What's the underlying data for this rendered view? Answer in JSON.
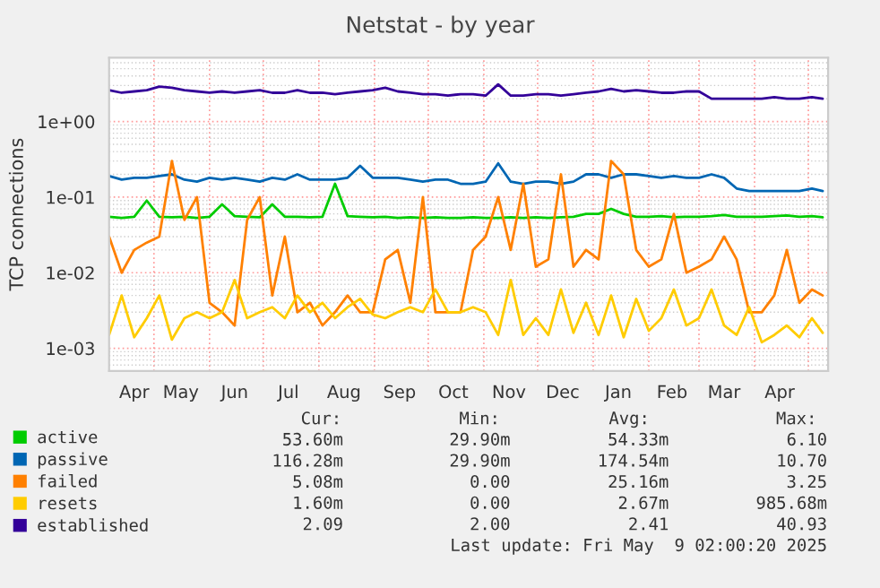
{
  "chart_data": {
    "type": "line",
    "title": "Netstat - by year",
    "ylabel": "TCP connections",
    "log": "y",
    "grid": true,
    "legend": "bottom",
    "x": [
      "2024-04-06",
      "2024-04-13",
      "2024-04-20",
      "2024-04-27",
      "2024-05-04",
      "2024-05-11",
      "2024-05-18",
      "2024-05-25",
      "2024-06-01",
      "2024-06-08",
      "2024-06-15",
      "2024-06-22",
      "2024-06-29",
      "2024-07-06",
      "2024-07-13",
      "2024-07-20",
      "2024-07-27",
      "2024-08-03",
      "2024-08-10",
      "2024-08-17",
      "2024-08-24",
      "2024-08-31",
      "2024-09-07",
      "2024-09-14",
      "2024-09-21",
      "2024-09-28",
      "2024-10-05",
      "2024-10-12",
      "2024-10-19",
      "2024-10-26",
      "2024-11-02",
      "2024-11-09",
      "2024-11-16",
      "2024-11-23",
      "2024-11-30",
      "2024-12-07",
      "2024-12-14",
      "2024-12-21",
      "2024-12-28",
      "2025-01-04",
      "2025-01-11",
      "2025-01-18",
      "2025-01-25",
      "2025-02-01",
      "2025-02-08",
      "2025-02-15",
      "2025-02-22",
      "2025-03-01",
      "2025-03-08",
      "2025-03-15",
      "2025-03-22",
      "2025-03-29",
      "2025-04-05",
      "2025-04-12",
      "2025-04-19",
      "2025-04-26",
      "2025-05-03",
      "2025-05-09"
    ],
    "xlim": [
      "2024-04-06",
      "2025-05-12"
    ],
    "xticks": [
      {
        "value": "2024-04-20",
        "label": "Apr"
      },
      {
        "value": "2024-05-16",
        "label": "May"
      },
      {
        "value": "2024-06-15",
        "label": "Jun"
      },
      {
        "value": "2024-07-15",
        "label": "Jul"
      },
      {
        "value": "2024-08-15",
        "label": "Aug"
      },
      {
        "value": "2024-09-15",
        "label": "Sep"
      },
      {
        "value": "2024-10-15",
        "label": "Oct"
      },
      {
        "value": "2024-11-15",
        "label": "Nov"
      },
      {
        "value": "2024-12-15",
        "label": "Dec"
      },
      {
        "value": "2025-01-15",
        "label": "Jan"
      },
      {
        "value": "2025-02-14",
        "label": "Feb"
      },
      {
        "value": "2025-03-15",
        "label": "Mar"
      },
      {
        "value": "2025-04-15",
        "label": "Apr"
      },
      {
        "value": "2024-05-01",
        "label": null
      },
      {
        "value": "2024-06-01",
        "label": null
      },
      {
        "value": "2024-07-01",
        "label": null
      },
      {
        "value": "2024-08-01",
        "label": null
      },
      {
        "value": "2024-09-01",
        "label": null
      },
      {
        "value": "2024-10-01",
        "label": null
      },
      {
        "value": "2024-11-01",
        "label": null
      },
      {
        "value": "2024-12-01",
        "label": null
      },
      {
        "value": "2025-01-01",
        "label": null
      },
      {
        "value": "2025-02-01",
        "label": null
      },
      {
        "value": "2025-03-01",
        "label": null
      },
      {
        "value": "2025-04-01",
        "label": null
      },
      {
        "value": "2025-05-01",
        "label": null
      }
    ],
    "ylim": [
      0.0005,
      7
    ],
    "yticks": [
      {
        "value": 0.001,
        "label": "1e-03"
      },
      {
        "value": 0.01,
        "label": "1e-02"
      },
      {
        "value": 0.1,
        "label": "1e-01"
      },
      {
        "value": 1,
        "label": "1e+00"
      }
    ],
    "series": [
      {
        "name": "active",
        "color": "#00cc00",
        "values": [
          0.055,
          0.053,
          0.055,
          0.09,
          0.055,
          0.054,
          0.055,
          0.053,
          0.055,
          0.08,
          0.056,
          0.055,
          0.054,
          0.08,
          0.055,
          0.055,
          0.054,
          0.055,
          0.15,
          0.056,
          0.055,
          0.054,
          0.055,
          0.053,
          0.054,
          0.053,
          0.054,
          0.053,
          0.053,
          0.054,
          0.053,
          0.053,
          0.054,
          0.053,
          0.054,
          0.053,
          0.054,
          0.055,
          0.06,
          0.06,
          0.07,
          0.06,
          0.055,
          0.055,
          0.056,
          0.054,
          0.055,
          0.055,
          0.056,
          0.058,
          0.055,
          0.055,
          0.055,
          0.056,
          0.057,
          0.055,
          0.056,
          0.054
        ]
      },
      {
        "name": "passive",
        "color": "#0066b3",
        "values": [
          0.19,
          0.17,
          0.18,
          0.18,
          0.19,
          0.2,
          0.17,
          0.16,
          0.18,
          0.17,
          0.18,
          0.17,
          0.16,
          0.18,
          0.17,
          0.2,
          0.17,
          0.17,
          0.17,
          0.18,
          0.26,
          0.18,
          0.18,
          0.18,
          0.17,
          0.16,
          0.17,
          0.17,
          0.15,
          0.15,
          0.16,
          0.28,
          0.16,
          0.15,
          0.16,
          0.16,
          0.15,
          0.16,
          0.2,
          0.2,
          0.18,
          0.2,
          0.2,
          0.19,
          0.18,
          0.19,
          0.18,
          0.18,
          0.2,
          0.18,
          0.13,
          0.12,
          0.12,
          0.12,
          0.12,
          0.12,
          0.13,
          0.12
        ]
      },
      {
        "name": "failed",
        "color": "#ff8000",
        "values": [
          0.03,
          0.01,
          0.02,
          0.025,
          0.03,
          0.3,
          0.05,
          0.1,
          0.004,
          0.003,
          0.002,
          0.05,
          0.1,
          0.005,
          0.03,
          0.003,
          0.004,
          0.002,
          0.003,
          0.005,
          0.003,
          0.003,
          0.015,
          0.02,
          0.004,
          0.1,
          0.003,
          0.003,
          0.003,
          0.02,
          0.03,
          0.1,
          0.02,
          0.15,
          0.012,
          0.015,
          0.2,
          0.012,
          0.02,
          0.015,
          0.3,
          0.2,
          0.02,
          0.012,
          0.015,
          0.06,
          0.01,
          0.012,
          0.015,
          0.03,
          0.015,
          0.003,
          0.003,
          0.005,
          0.02,
          0.004,
          0.006,
          0.005
        ]
      },
      {
        "name": "resets",
        "color": "#ffcc00",
        "values": [
          0.0015,
          0.005,
          0.0014,
          0.0025,
          0.005,
          0.0013,
          0.0025,
          0.003,
          0.0025,
          0.003,
          0.008,
          0.0025,
          0.003,
          0.0035,
          0.0025,
          0.005,
          0.003,
          0.004,
          0.0025,
          0.0035,
          0.0045,
          0.0028,
          0.0025,
          0.003,
          0.0035,
          0.003,
          0.006,
          0.003,
          0.003,
          0.0035,
          0.003,
          0.0015,
          0.008,
          0.0015,
          0.0025,
          0.0015,
          0.006,
          0.0016,
          0.004,
          0.0015,
          0.005,
          0.0014,
          0.0045,
          0.0017,
          0.0025,
          0.006,
          0.002,
          0.0025,
          0.006,
          0.002,
          0.0015,
          0.0035,
          0.0012,
          0.0015,
          0.002,
          0.0014,
          0.0025,
          0.0016
        ]
      },
      {
        "name": "established",
        "color": "#330099",
        "values": [
          2.6,
          2.4,
          2.5,
          2.6,
          2.9,
          2.8,
          2.6,
          2.5,
          2.4,
          2.5,
          2.4,
          2.5,
          2.6,
          2.4,
          2.4,
          2.6,
          2.4,
          2.4,
          2.3,
          2.4,
          2.5,
          2.6,
          2.8,
          2.5,
          2.4,
          2.3,
          2.3,
          2.2,
          2.3,
          2.3,
          2.2,
          3.1,
          2.2,
          2.2,
          2.3,
          2.3,
          2.2,
          2.3,
          2.4,
          2.5,
          2.7,
          2.5,
          2.6,
          2.5,
          2.4,
          2.4,
          2.5,
          2.5,
          2.0,
          2.0,
          2.0,
          2.0,
          2.0,
          2.1,
          2.0,
          2.0,
          2.1,
          2.0
        ]
      }
    ],
    "annotations": [
      "Cur:",
      "Min:",
      "Avg:",
      "Max:",
      "53.60m",
      "29.90m",
      "54.33m",
      "6.10",
      "116.28m",
      "29.90m",
      "174.54m",
      "10.70",
      "5.08m",
      "0.00",
      "25.16m",
      "3.25",
      "1.60m",
      "0.00",
      "2.67m",
      "985.68m",
      "2.09",
      "2.00",
      "2.41",
      "40.93",
      "Last update: Fri May  9 02:00:20 2025"
    ]
  }
}
